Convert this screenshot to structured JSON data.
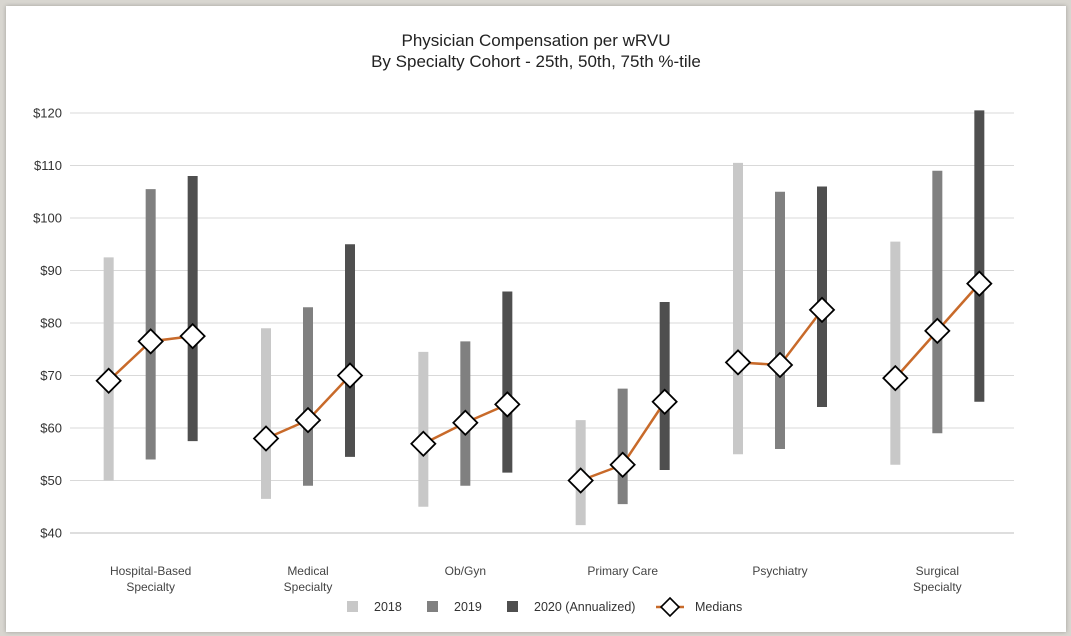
{
  "chart_data": {
    "type": "range-bar-with-median-line",
    "title": "Physician Compensation per wRVU",
    "subtitle": "By Specialty Cohort - 25th, 50th, 75th %-tile",
    "ylim": [
      40,
      120
    ],
    "yticks": [
      "$40",
      "$50",
      "$60",
      "$70",
      "$80",
      "$90",
      "$100",
      "$110",
      "$120"
    ],
    "grid": true,
    "legend_position": "bottom",
    "categories": [
      [
        "Hospital-Based",
        "Specialty"
      ],
      [
        "Medical",
        "Specialty"
      ],
      [
        "Ob/Gyn"
      ],
      [
        "Primary Care"
      ],
      [
        "Psychiatry"
      ],
      [
        "Surgical",
        "Specialty"
      ]
    ],
    "series": [
      {
        "name": "2018",
        "color": "#c8c8c8",
        "p25": [
          50,
          46.5,
          45,
          41.5,
          55,
          53
        ],
        "p50": [
          69,
          58,
          57,
          50,
          72.5,
          69.5
        ],
        "p75": [
          92.5,
          79,
          74.5,
          61.5,
          110.5,
          95.5
        ]
      },
      {
        "name": "2019",
        "color": "#808080",
        "p25": [
          54,
          49,
          49,
          45.5,
          56,
          59
        ],
        "p50": [
          76.5,
          61.5,
          61,
          53,
          72,
          78.5
        ],
        "p75": [
          105.5,
          83,
          76.5,
          67.5,
          105,
          109
        ]
      },
      {
        "name": "2020 (Annualized)",
        "color": "#4f4f4f",
        "p25": [
          57.5,
          54.5,
          51.5,
          52,
          64,
          65
        ],
        "p50": [
          77.5,
          70,
          64.5,
          65,
          82.5,
          87.5
        ],
        "p75": [
          108,
          95,
          86,
          84,
          106,
          120.5
        ]
      }
    ],
    "median_series": {
      "name": "Medians",
      "line_color": "#c86a2a"
    }
  }
}
